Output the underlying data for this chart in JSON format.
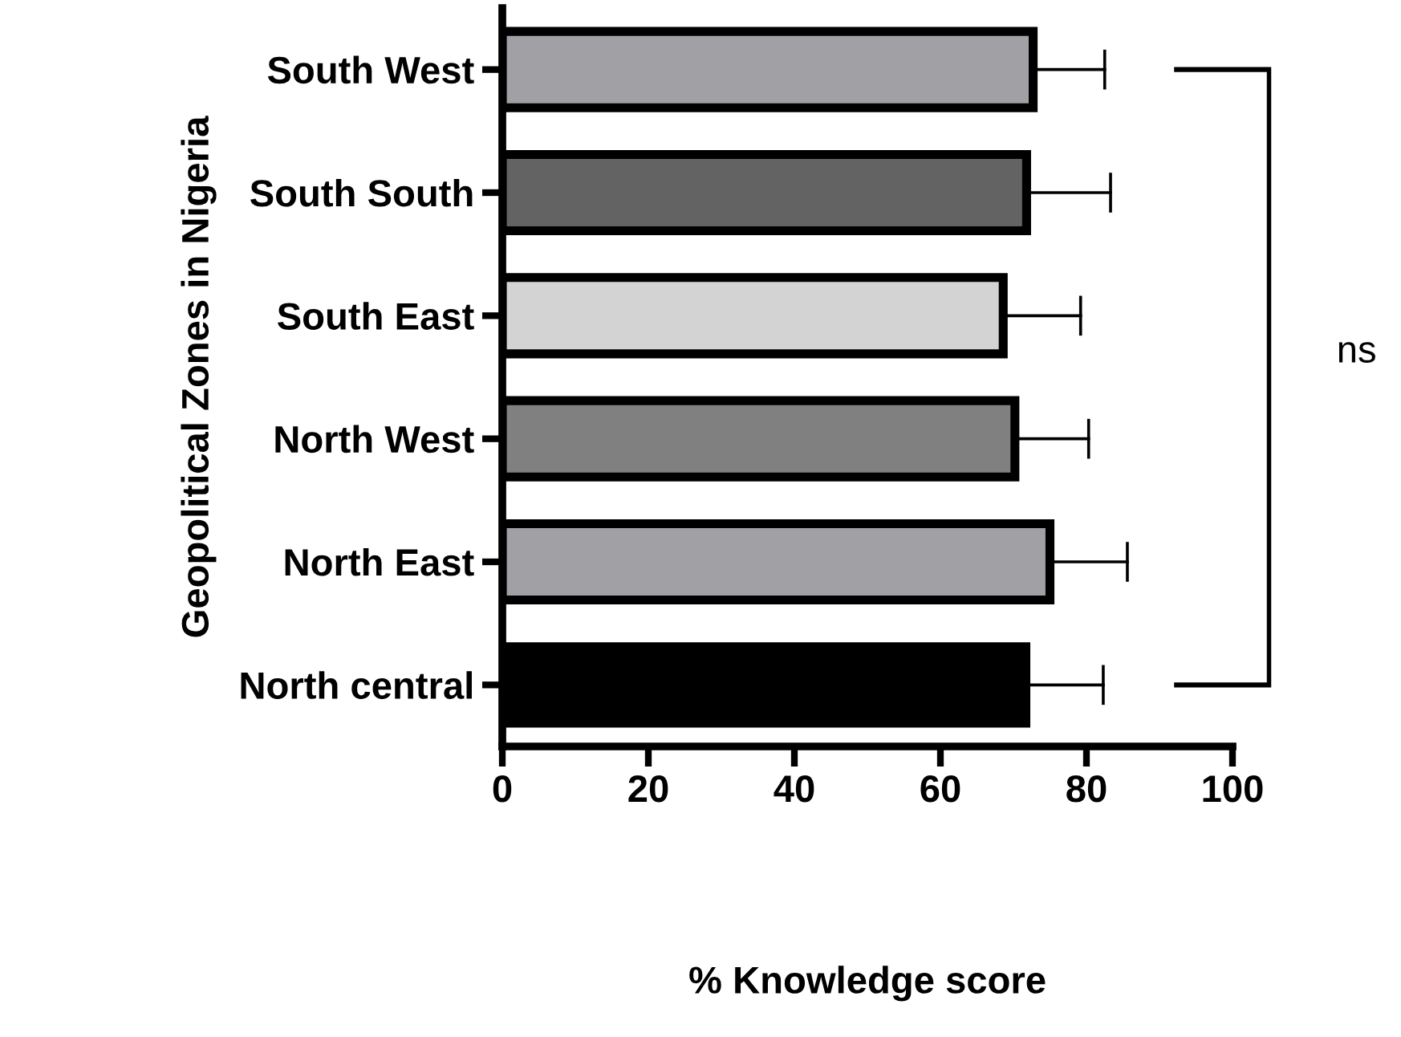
{
  "chart_data": {
    "type": "bar",
    "orientation": "horizontal",
    "categories": [
      "South West",
      "South South",
      "South East",
      "North West",
      "North East",
      "North central"
    ],
    "values": [
      72.7,
      71.8,
      68.6,
      70.2,
      75.0,
      71.7
    ],
    "colors": [
      "#a1a0a5",
      "#636363",
      "#d3d3d3",
      "#808080",
      "#a1a0a5",
      "#000000"
    ],
    "errors": [
      9.8,
      11.5,
      10.6,
      10.1,
      10.6,
      10.6
    ],
    "xlim": [
      0,
      100
    ],
    "xticks": [
      0,
      20,
      40,
      60,
      80,
      100
    ],
    "xlabel": "% Knowledge score",
    "ylabel": "Geopolitical Zones in Nigeria",
    "annotations": [
      "ns"
    ],
    "grid": false,
    "legend": false
  }
}
